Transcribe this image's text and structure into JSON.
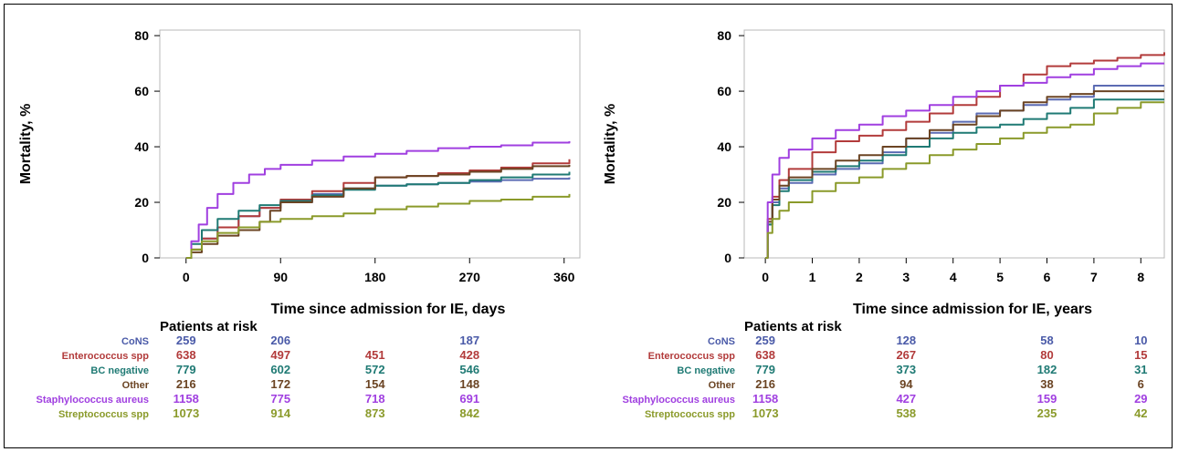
{
  "chart_data": [
    {
      "type": "line",
      "xlabel": "Time since admission for IE, days",
      "ylabel": "Mortality, %",
      "xlim": [
        -25,
        375
      ],
      "ylim": [
        0,
        82
      ],
      "xticks": [
        0,
        90,
        180,
        270,
        360
      ],
      "yticks": [
        0,
        20,
        40,
        60,
        80
      ],
      "grid": false,
      "series": [
        {
          "name": "CoNS",
          "color": "#5b6bb3",
          "points": [
            [
              0,
              0
            ],
            [
              5,
              3
            ],
            [
              15,
              7
            ],
            [
              30,
              11
            ],
            [
              50,
              15
            ],
            [
              70,
              18
            ],
            [
              90,
              20
            ],
            [
              120,
              23
            ],
            [
              150,
              25
            ],
            [
              180,
              26
            ],
            [
              210,
              26.5
            ],
            [
              240,
              27
            ],
            [
              270,
              27.5
            ],
            [
              300,
              28
            ],
            [
              330,
              28.5
            ],
            [
              365,
              29
            ]
          ]
        },
        {
          "name": "Enterococcus spp",
          "color": "#b23b3b",
          "points": [
            [
              0,
              0
            ],
            [
              5,
              3
            ],
            [
              15,
              7
            ],
            [
              30,
              11
            ],
            [
              50,
              15
            ],
            [
              70,
              18
            ],
            [
              90,
              21
            ],
            [
              120,
              24
            ],
            [
              150,
              27
            ],
            [
              180,
              29
            ],
            [
              210,
              29.5
            ],
            [
              240,
              30.5
            ],
            [
              270,
              31.5
            ],
            [
              300,
              32.5
            ],
            [
              330,
              34
            ],
            [
              365,
              35.5
            ]
          ]
        },
        {
          "name": "BC negative",
          "color": "#1f7a74",
          "points": [
            [
              0,
              0
            ],
            [
              5,
              5
            ],
            [
              15,
              10
            ],
            [
              30,
              14
            ],
            [
              50,
              17
            ],
            [
              70,
              19
            ],
            [
              90,
              20.5
            ],
            [
              120,
              22.5
            ],
            [
              150,
              24.5
            ],
            [
              180,
              26
            ],
            [
              210,
              26.5
            ],
            [
              240,
              27
            ],
            [
              270,
              28
            ],
            [
              300,
              29
            ],
            [
              330,
              30
            ],
            [
              365,
              31
            ]
          ]
        },
        {
          "name": "Other",
          "color": "#6b4423",
          "points": [
            [
              0,
              0
            ],
            [
              5,
              2
            ],
            [
              15,
              5
            ],
            [
              30,
              8
            ],
            [
              50,
              10
            ],
            [
              70,
              13
            ],
            [
              80,
              17
            ],
            [
              90,
              20
            ],
            [
              120,
              22
            ],
            [
              150,
              25
            ],
            [
              180,
              29
            ],
            [
              210,
              29.5
            ],
            [
              240,
              30
            ],
            [
              270,
              31
            ],
            [
              300,
              32
            ],
            [
              330,
              33
            ],
            [
              365,
              33.5
            ]
          ]
        },
        {
          "name": "Staphylococcus aureus",
          "color": "#a03fe0",
          "points": [
            [
              0,
              0
            ],
            [
              5,
              6
            ],
            [
              12,
              12
            ],
            [
              20,
              18
            ],
            [
              30,
              23
            ],
            [
              45,
              27
            ],
            [
              60,
              30
            ],
            [
              75,
              32
            ],
            [
              90,
              33.5
            ],
            [
              120,
              35
            ],
            [
              150,
              36.5
            ],
            [
              180,
              37.5
            ],
            [
              210,
              38.5
            ],
            [
              240,
              39.5
            ],
            [
              270,
              40
            ],
            [
              300,
              40.5
            ],
            [
              330,
              41.5
            ],
            [
              365,
              42
            ]
          ]
        },
        {
          "name": "Streptococcus spp",
          "color": "#8a9a2a",
          "points": [
            [
              0,
              0
            ],
            [
              5,
              3
            ],
            [
              15,
              6
            ],
            [
              30,
              9
            ],
            [
              50,
              11
            ],
            [
              70,
              13
            ],
            [
              90,
              14
            ],
            [
              120,
              15
            ],
            [
              150,
              16
            ],
            [
              180,
              17.5
            ],
            [
              210,
              18.5
            ],
            [
              240,
              19.5
            ],
            [
              270,
              20.5
            ],
            [
              300,
              21
            ],
            [
              330,
              22
            ],
            [
              365,
              23
            ]
          ]
        }
      ],
      "risk_table": {
        "title": "Patients at risk",
        "time_points": [
          0,
          90,
          180,
          270
        ],
        "rows": [
          {
            "name": "CoNS",
            "color": "#4a5aa8",
            "values": [
              "259",
              "206",
              "",
              "187"
            ]
          },
          {
            "name": "Enterococcus spp",
            "color": "#b23b3b",
            "values": [
              "638",
              "497",
              "451",
              "428"
            ]
          },
          {
            "name": "BC negative",
            "color": "#1f7a74",
            "values": [
              "779",
              "602",
              "572",
              "546"
            ]
          },
          {
            "name": "Other",
            "color": "#6b4423",
            "values": [
              "216",
              "172",
              "154",
              "148"
            ]
          },
          {
            "name": "Staphylococcus aureus",
            "color": "#a03fe0",
            "values": [
              "1158",
              "775",
              "718",
              "691"
            ]
          },
          {
            "name": "Streptococcus spp",
            "color": "#8a9a2a",
            "values": [
              "1073",
              "914",
              "873",
              "842"
            ]
          }
        ]
      }
    },
    {
      "type": "line",
      "xlabel": "Time since admission for IE, years",
      "ylabel": "Mortality, %",
      "xlim": [
        -0.45,
        8.5
      ],
      "ylim": [
        0,
        82
      ],
      "xticks": [
        0,
        1,
        2,
        3,
        4,
        5,
        6,
        7,
        8
      ],
      "yticks": [
        0,
        20,
        40,
        60,
        80
      ],
      "grid": false,
      "series": [
        {
          "name": "CoNS",
          "color": "#5b6bb3",
          "points": [
            [
              0,
              0
            ],
            [
              0.05,
              12
            ],
            [
              0.15,
              20
            ],
            [
              0.3,
              25
            ],
            [
              0.5,
              27
            ],
            [
              1,
              30
            ],
            [
              1.5,
              32
            ],
            [
              2,
              34
            ],
            [
              2.5,
              38
            ],
            [
              3,
              43
            ],
            [
              3.5,
              45
            ],
            [
              4,
              49
            ],
            [
              4.5,
              52
            ],
            [
              5,
              53
            ],
            [
              5.5,
              55
            ],
            [
              6,
              57
            ],
            [
              6.5,
              58
            ],
            [
              7,
              62
            ],
            [
              8.5,
              62
            ]
          ]
        },
        {
          "name": "Enterococcus spp",
          "color": "#b23b3b",
          "points": [
            [
              0,
              0
            ],
            [
              0.05,
              14
            ],
            [
              0.15,
              22
            ],
            [
              0.3,
              28
            ],
            [
              0.5,
              32
            ],
            [
              1,
              38
            ],
            [
              1.5,
              42
            ],
            [
              2,
              44
            ],
            [
              2.5,
              46
            ],
            [
              3,
              49
            ],
            [
              3.5,
              52
            ],
            [
              4,
              55
            ],
            [
              4.5,
              58
            ],
            [
              5,
              62
            ],
            [
              5.5,
              66
            ],
            [
              6,
              69
            ],
            [
              6.5,
              70
            ],
            [
              7,
              71
            ],
            [
              7.5,
              72
            ],
            [
              8,
              73
            ],
            [
              8.5,
              74
            ]
          ]
        },
        {
          "name": "BC negative",
          "color": "#1f7a74",
          "points": [
            [
              0,
              0
            ],
            [
              0.05,
              12
            ],
            [
              0.15,
              19
            ],
            [
              0.3,
              24
            ],
            [
              0.5,
              28
            ],
            [
              1,
              31
            ],
            [
              1.5,
              33
            ],
            [
              2,
              35
            ],
            [
              2.5,
              37
            ],
            [
              3,
              40
            ],
            [
              3.5,
              43
            ],
            [
              4,
              45
            ],
            [
              4.5,
              47
            ],
            [
              5,
              48
            ],
            [
              5.5,
              50
            ],
            [
              6,
              52
            ],
            [
              6.5,
              54
            ],
            [
              7,
              57
            ],
            [
              8.5,
              57
            ]
          ]
        },
        {
          "name": "Other",
          "color": "#6b4423",
          "points": [
            [
              0,
              0
            ],
            [
              0.05,
              13
            ],
            [
              0.15,
              21
            ],
            [
              0.3,
              26
            ],
            [
              0.5,
              29
            ],
            [
              1,
              32
            ],
            [
              1.5,
              35
            ],
            [
              2,
              37
            ],
            [
              2.5,
              40
            ],
            [
              3,
              43
            ],
            [
              3.5,
              46
            ],
            [
              4,
              48
            ],
            [
              4.5,
              51
            ],
            [
              5,
              53
            ],
            [
              5.5,
              56
            ],
            [
              6,
              58
            ],
            [
              6.5,
              59
            ],
            [
              7,
              60
            ],
            [
              8.5,
              60
            ]
          ]
        },
        {
          "name": "Staphylococcus aureus",
          "color": "#a03fe0",
          "points": [
            [
              0,
              0
            ],
            [
              0.05,
              20
            ],
            [
              0.15,
              30
            ],
            [
              0.3,
              36
            ],
            [
              0.5,
              39
            ],
            [
              1,
              43
            ],
            [
              1.5,
              46
            ],
            [
              2,
              48
            ],
            [
              2.5,
              51
            ],
            [
              3,
              53
            ],
            [
              3.5,
              55
            ],
            [
              4,
              58
            ],
            [
              4.5,
              60
            ],
            [
              5,
              62
            ],
            [
              5.5,
              63
            ],
            [
              6,
              65
            ],
            [
              6.5,
              66
            ],
            [
              7,
              68
            ],
            [
              7.5,
              69
            ],
            [
              8,
              70
            ],
            [
              8.5,
              70
            ]
          ]
        },
        {
          "name": "Streptococcus spp",
          "color": "#8a9a2a",
          "points": [
            [
              0,
              0
            ],
            [
              0.05,
              9
            ],
            [
              0.15,
              14
            ],
            [
              0.3,
              17
            ],
            [
              0.5,
              20
            ],
            [
              1,
              24
            ],
            [
              1.5,
              27
            ],
            [
              2,
              29
            ],
            [
              2.5,
              32
            ],
            [
              3,
              34
            ],
            [
              3.5,
              37
            ],
            [
              4,
              39
            ],
            [
              4.5,
              41
            ],
            [
              5,
              43
            ],
            [
              5.5,
              45
            ],
            [
              6,
              47
            ],
            [
              6.5,
              48
            ],
            [
              7,
              52
            ],
            [
              7.5,
              54
            ],
            [
              8,
              56
            ],
            [
              8.5,
              56
            ]
          ]
        }
      ],
      "risk_table": {
        "title": "Patients at risk",
        "time_points": [
          0,
          3,
          6,
          8
        ],
        "rows": [
          {
            "name": "CoNS",
            "color": "#4a5aa8",
            "values": [
              "259",
              "128",
              "58",
              "10"
            ]
          },
          {
            "name": "Enterococcus spp",
            "color": "#b23b3b",
            "values": [
              "638",
              "267",
              "80",
              "15"
            ]
          },
          {
            "name": "BC negative",
            "color": "#1f7a74",
            "values": [
              "779",
              "373",
              "182",
              "31"
            ]
          },
          {
            "name": "Other",
            "color": "#6b4423",
            "values": [
              "216",
              "94",
              "38",
              "6"
            ]
          },
          {
            "name": "Staphylococcus aureus",
            "color": "#a03fe0",
            "values": [
              "1158",
              "427",
              "159",
              "29"
            ]
          },
          {
            "name": "Streptococcus spp",
            "color": "#8a9a2a",
            "values": [
              "1073",
              "538",
              "235",
              "42"
            ]
          }
        ]
      }
    }
  ]
}
